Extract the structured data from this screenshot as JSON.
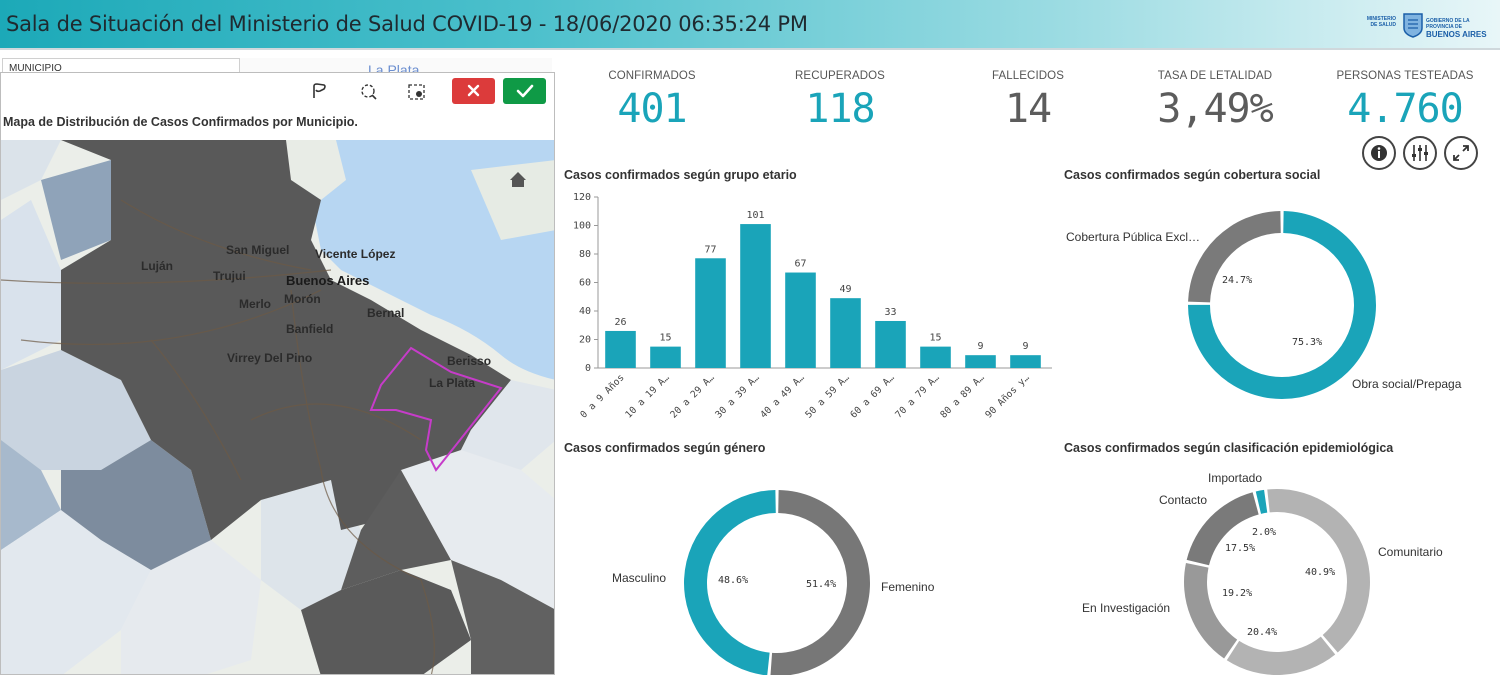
{
  "header": {
    "title": "Sala de Situación del Ministerio de Salud COVID-19 - 18/06/2020 06:35:24 PM",
    "logo_left": "MINISTERIO DE SALUD",
    "logo_right_line1": "GOBIERNO DE LA PROVINCIA DE",
    "logo_right_line2": "BUENOS AIRES"
  },
  "filter": {
    "municipio_label": "MUNICIPIO",
    "selected_ghost": "La Plata"
  },
  "map": {
    "title": "Mapa de Distribución de Casos Confirmados por Municipio.",
    "tools": [
      "lasso-icon",
      "circle-select-icon",
      "box-select-icon"
    ],
    "labels": {
      "san_miguel": "San Miguel",
      "vicente_lopez": "Vicente López",
      "lujan": "Luján",
      "trujui": "Trujui",
      "buenos_aires": "Buenos Aires",
      "merlo": "Merlo",
      "moron": "Morón",
      "bernal": "Bernal",
      "banfield": "Banfield",
      "virrey_del_pino": "Virrey Del Pino",
      "berisso": "Berisso",
      "la_plata": "La Plata"
    },
    "colors": {
      "dark": "#595959",
      "mid": "#7d8c9e",
      "light": "#c9d4e0",
      "water": "#b7d6f2",
      "land": "#ebeee9",
      "selection": "#c63cc9"
    }
  },
  "kpis": [
    {
      "label": "CONFIRMADOS",
      "value": "401",
      "color": "#1aa4b9"
    },
    {
      "label": "RECUPERADOS",
      "value": "118",
      "color": "#1aa4b9"
    },
    {
      "label": "FALLECIDOS",
      "value": "14",
      "color": "#5c5c5c"
    },
    {
      "label": "TASA DE LETALIDAD",
      "value": "3,49%",
      "color": "#5c5c5c"
    },
    {
      "label": "PERSONAS TESTEADAS",
      "value": "4.760",
      "color": "#1aa4b9"
    }
  ],
  "toolbar_icons": [
    "info-icon",
    "adjust-icon",
    "expand-icon"
  ],
  "chart_data": [
    {
      "type": "bar",
      "title": "Casos confirmados según grupo etario",
      "categories": [
        "0 a 9 Años",
        "10 a 19 A…",
        "20 a 29 A…",
        "30 a 39 A…",
        "40 a 49 A…",
        "50 a 59 A…",
        "60 a 69 A…",
        "70 a 79 A…",
        "80 a 89 A…",
        "90 Años y…"
      ],
      "values": [
        26,
        15,
        77,
        101,
        67,
        49,
        33,
        15,
        9,
        9
      ],
      "yticks": [
        0,
        20,
        40,
        60,
        80,
        100,
        120
      ],
      "ylim": [
        0,
        120
      ],
      "color": "#1aa4b9"
    },
    {
      "type": "pie",
      "donut": true,
      "title": "Casos confirmados según cobertura social",
      "slices": [
        {
          "label": "Obra social/Prepaga",
          "value": 75.3,
          "display": "75.3%",
          "color": "#1aa4b9"
        },
        {
          "label": "Cobertura Pública Excl…",
          "value": 24.7,
          "display": "24.7%",
          "color": "#7a7a7a"
        }
      ]
    },
    {
      "type": "pie",
      "donut": true,
      "title": "Casos confirmados según género",
      "slices": [
        {
          "label": "Femenino",
          "value": 51.4,
          "display": "51.4%",
          "color": "#777777"
        },
        {
          "label": "Masculino",
          "value": 48.6,
          "display": "48.6%",
          "color": "#1aa4b9"
        }
      ]
    },
    {
      "type": "pie",
      "donut": true,
      "title": "Casos confirmados según clasificación epidemiológica",
      "slices": [
        {
          "label": "Comunitario",
          "value": 40.9,
          "display": "40.9%",
          "color": "#b3b3b3"
        },
        {
          "label": "",
          "value": 20.4,
          "display": "20.4%",
          "color": "#b3b3b3"
        },
        {
          "label": "En Investigación",
          "value": 19.2,
          "display": "19.2%",
          "color": "#999999"
        },
        {
          "label": "Contacto",
          "value": 17.5,
          "display": "17.5%",
          "color": "#7a7a7a"
        },
        {
          "label": "Importado",
          "value": 2.0,
          "display": "2.0%",
          "color": "#1aa4b9"
        }
      ]
    }
  ]
}
